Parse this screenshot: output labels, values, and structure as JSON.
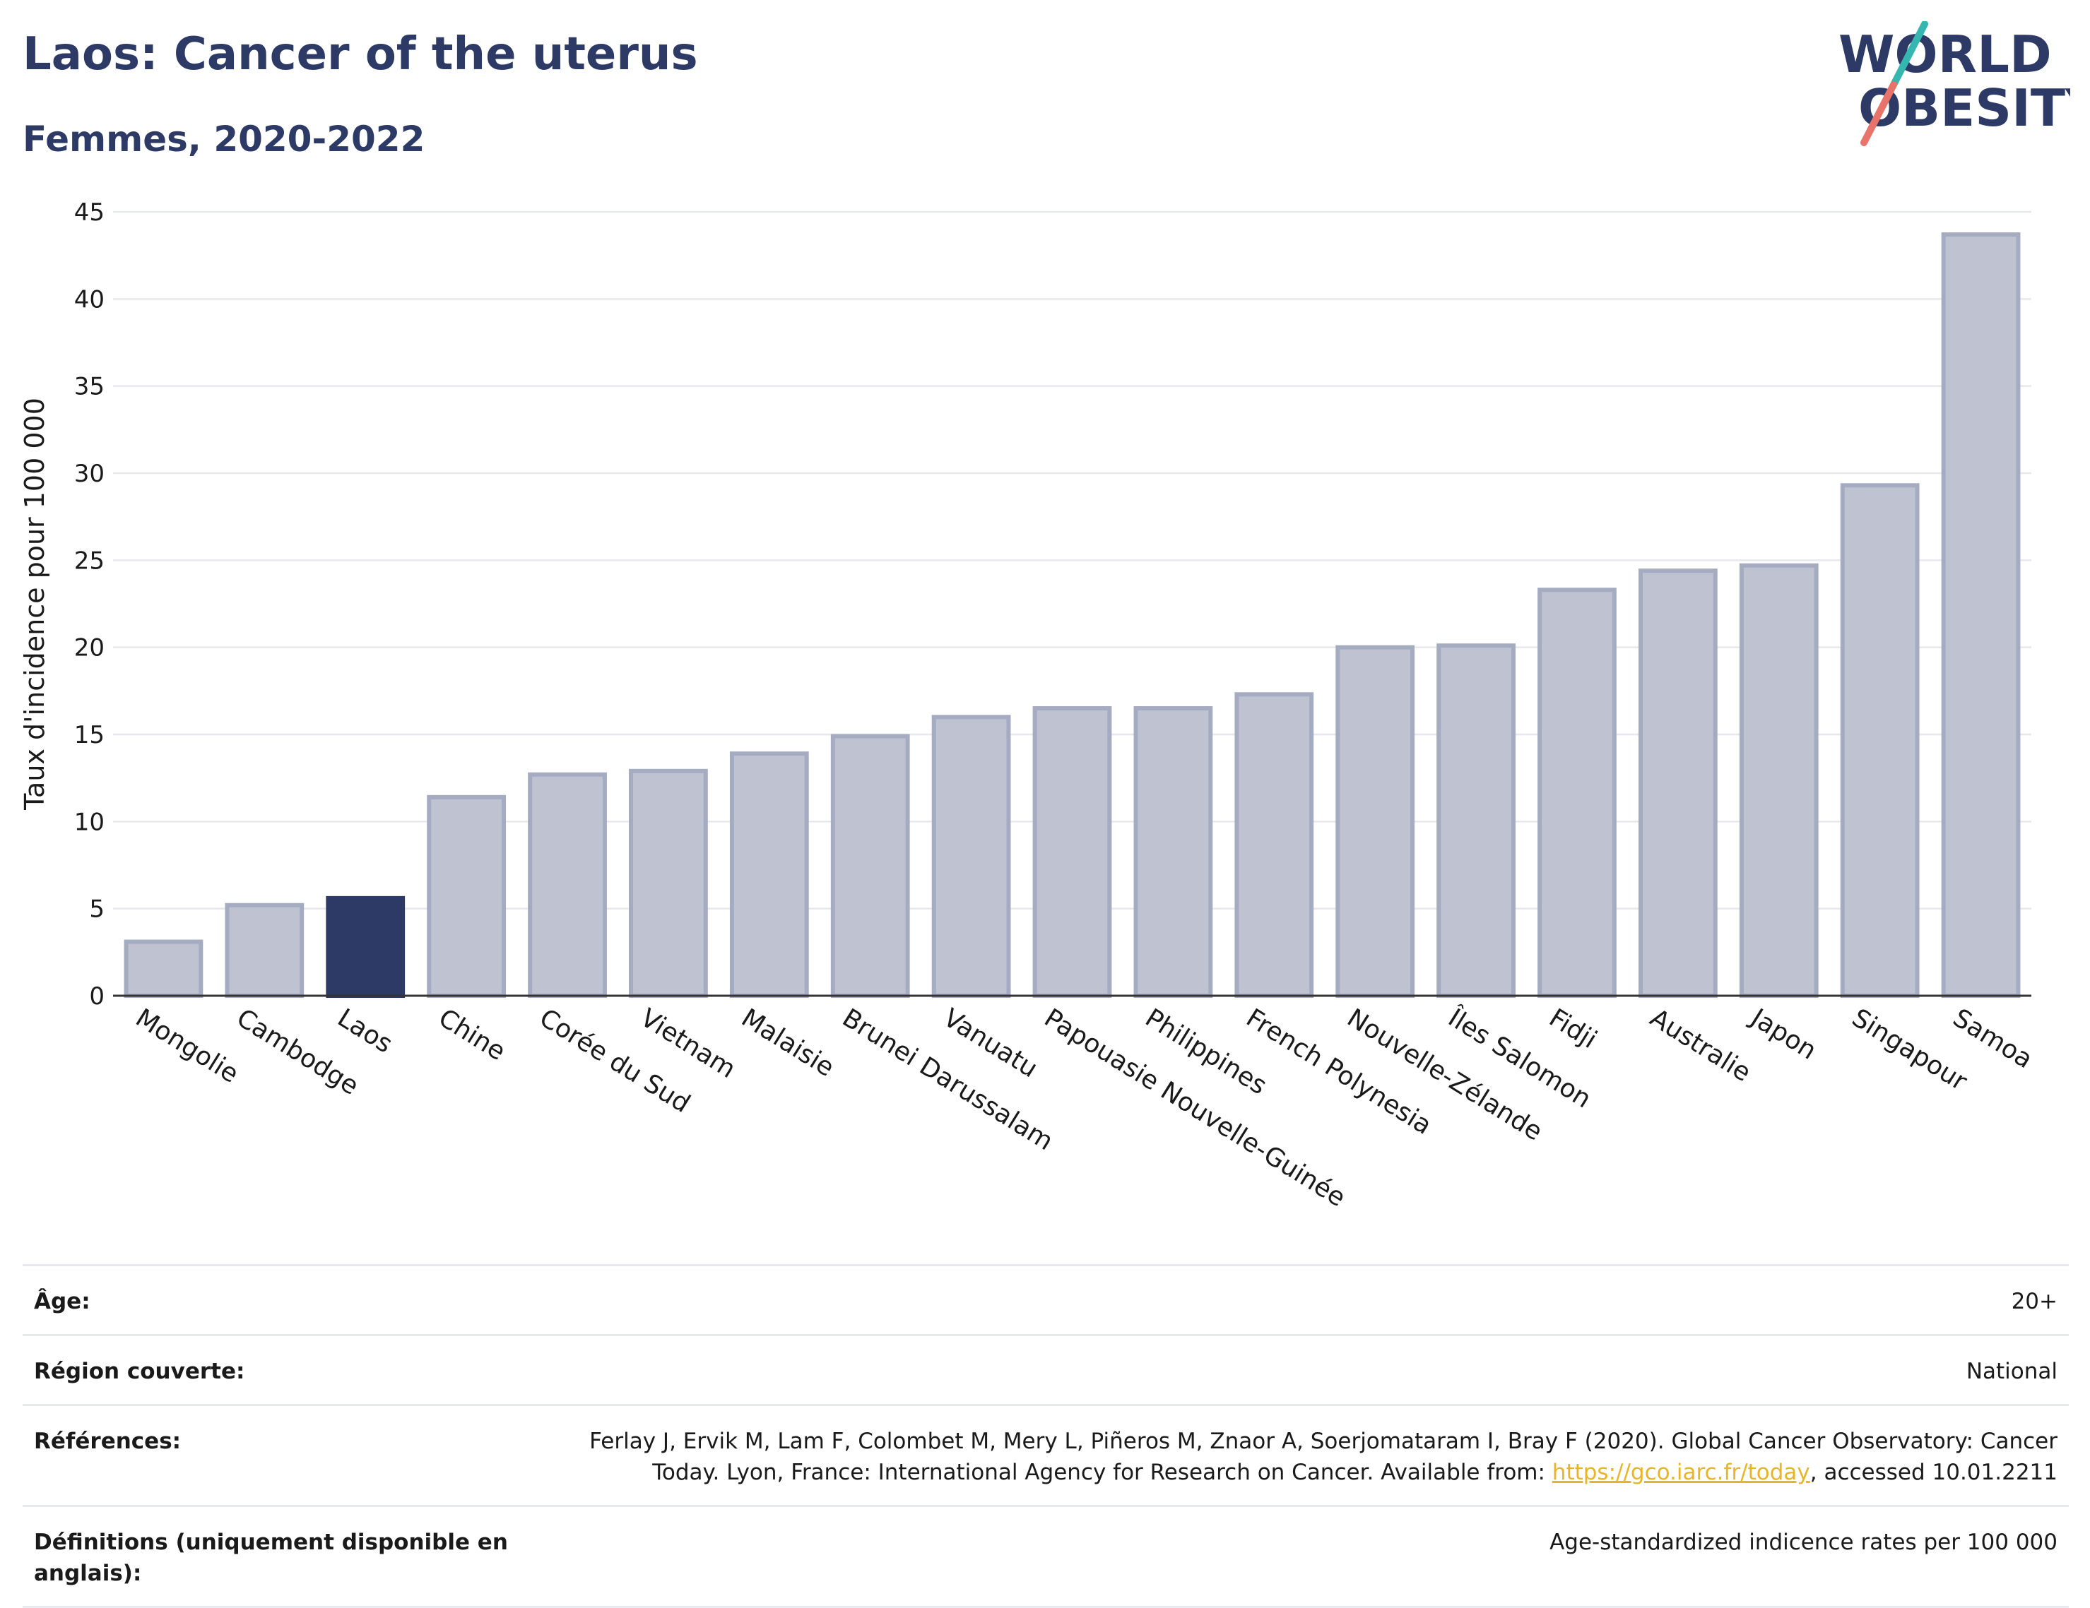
{
  "header": {
    "title": "Laos: Cancer of the uterus",
    "subtitle": "Femmes, 2020-2022"
  },
  "logo": {
    "line1": "WORLD",
    "line2": "OBESITY",
    "colors": {
      "text": "#2d3a66",
      "slash_teal": "#35b6b0",
      "slash_coral": "#e8736a"
    }
  },
  "colors": {
    "bar_default": "#bfc3d1",
    "bar_default_stroke": "#a5abc0",
    "bar_highlight": "#2d3a66",
    "grid": "#e6e8ee",
    "axis": "#333333",
    "title": "#2d3a66"
  },
  "chart_data": {
    "type": "bar",
    "title": "",
    "xlabel": "",
    "ylabel": "Taux d'incidence pour 100 000",
    "ylim": [
      0,
      45
    ],
    "yticks": [
      0,
      5,
      10,
      15,
      20,
      25,
      30,
      35,
      40,
      45
    ],
    "grid": true,
    "highlight": "Laos",
    "categories": [
      "Mongolie",
      "Cambodge",
      "Laos",
      "Chine",
      "Corée du Sud",
      "Vietnam",
      "Malaisie",
      "Brunei Darussalam",
      "Vanuatu",
      "Papouasie Nouvelle-Guinée",
      "Philippines",
      "French Polynesia",
      "Nouvelle-Zélande",
      "Îles Salomon",
      "Fidji",
      "Australie",
      "Japon",
      "Singapour",
      "Samoa"
    ],
    "values": [
      3.1,
      5.2,
      5.6,
      11.4,
      12.7,
      12.9,
      13.9,
      14.9,
      16.0,
      16.5,
      16.5,
      17.3,
      20.0,
      20.1,
      23.3,
      24.4,
      24.7,
      29.3,
      43.7
    ]
  },
  "info": {
    "age_label": "Âge:",
    "age_value": "20+",
    "region_label": "Région couverte:",
    "region_value": "National",
    "references_label": "Références:",
    "references_text_1": "Ferlay J, Ervik M, Lam F, Colombet M, Mery L, Piñeros M, Znaor A, Soerjomataram I, Bray F (2020). Global Cancer Observatory: Cancer Today. Lyon, France: International Agency for Research on Cancer. Available from: ",
    "references_link": "https://gco.iarc.fr/today",
    "references_text_2": ", accessed 10.01.2211",
    "definitions_label": "Définitions (uniquement disponible en anglais):",
    "definitions_value": "Age-standardized indicence rates per 100 000"
  }
}
